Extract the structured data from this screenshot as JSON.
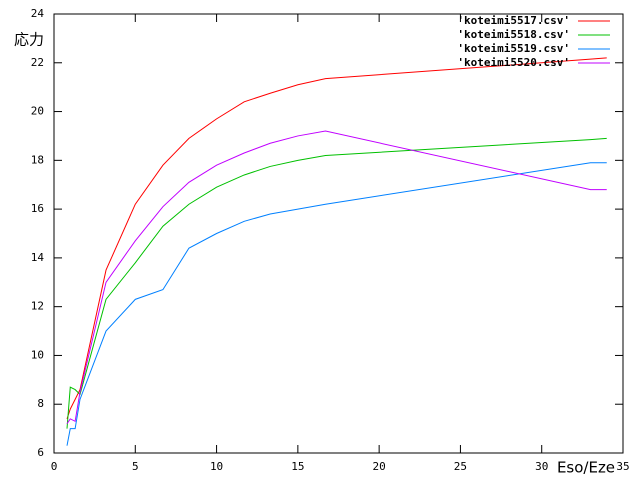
{
  "chart_data": {
    "type": "line",
    "xlabel": "Eso/Eze",
    "ylabel": "応力",
    "x": [
      0.8,
      1,
      1.3,
      1.6,
      3.2,
      5,
      6.7,
      8.3,
      10,
      11.7,
      13.3,
      15,
      16.7,
      33,
      34
    ],
    "series": [
      {
        "name": "'koteimi5517.csv'",
        "color": "#ff0000",
        "values": [
          7.4,
          7.8,
          8.2,
          8.6,
          13.5,
          16.2,
          17.8,
          18.9,
          19.7,
          20.4,
          20.75,
          21.1,
          21.35,
          22.15,
          22.2
        ]
      },
      {
        "name": "'koteimi5518.csv'",
        "color": "#00c000",
        "values": [
          7.0,
          8.7,
          8.6,
          8.4,
          12.3,
          13.8,
          15.3,
          16.2,
          16.9,
          17.4,
          17.75,
          18.0,
          18.2,
          18.85,
          18.9
        ]
      },
      {
        "name": "'koteimi5519.csv'",
        "color": "#0080ff",
        "values": [
          6.3,
          7.0,
          7.0,
          8.2,
          11.0,
          12.3,
          12.7,
          14.4,
          15.0,
          15.5,
          15.8,
          16.0,
          16.2,
          17.9,
          17.9
        ]
      },
      {
        "name": "'koteimi5520.csv'",
        "color": "#c000ff",
        "values": [
          7.2,
          7.4,
          7.3,
          8.5,
          13.0,
          14.7,
          16.1,
          17.1,
          17.8,
          18.3,
          18.7,
          19.0,
          19.2,
          16.8,
          16.8
        ]
      }
    ],
    "xlim": [
      0,
      35
    ],
    "ylim": [
      6,
      24
    ],
    "xticks": [
      0,
      5,
      10,
      15,
      20,
      25,
      30,
      35
    ],
    "yticks": [
      6,
      8,
      10,
      12,
      14,
      16,
      18,
      20,
      22,
      24
    ],
    "grid": false,
    "legend": "top-right"
  }
}
